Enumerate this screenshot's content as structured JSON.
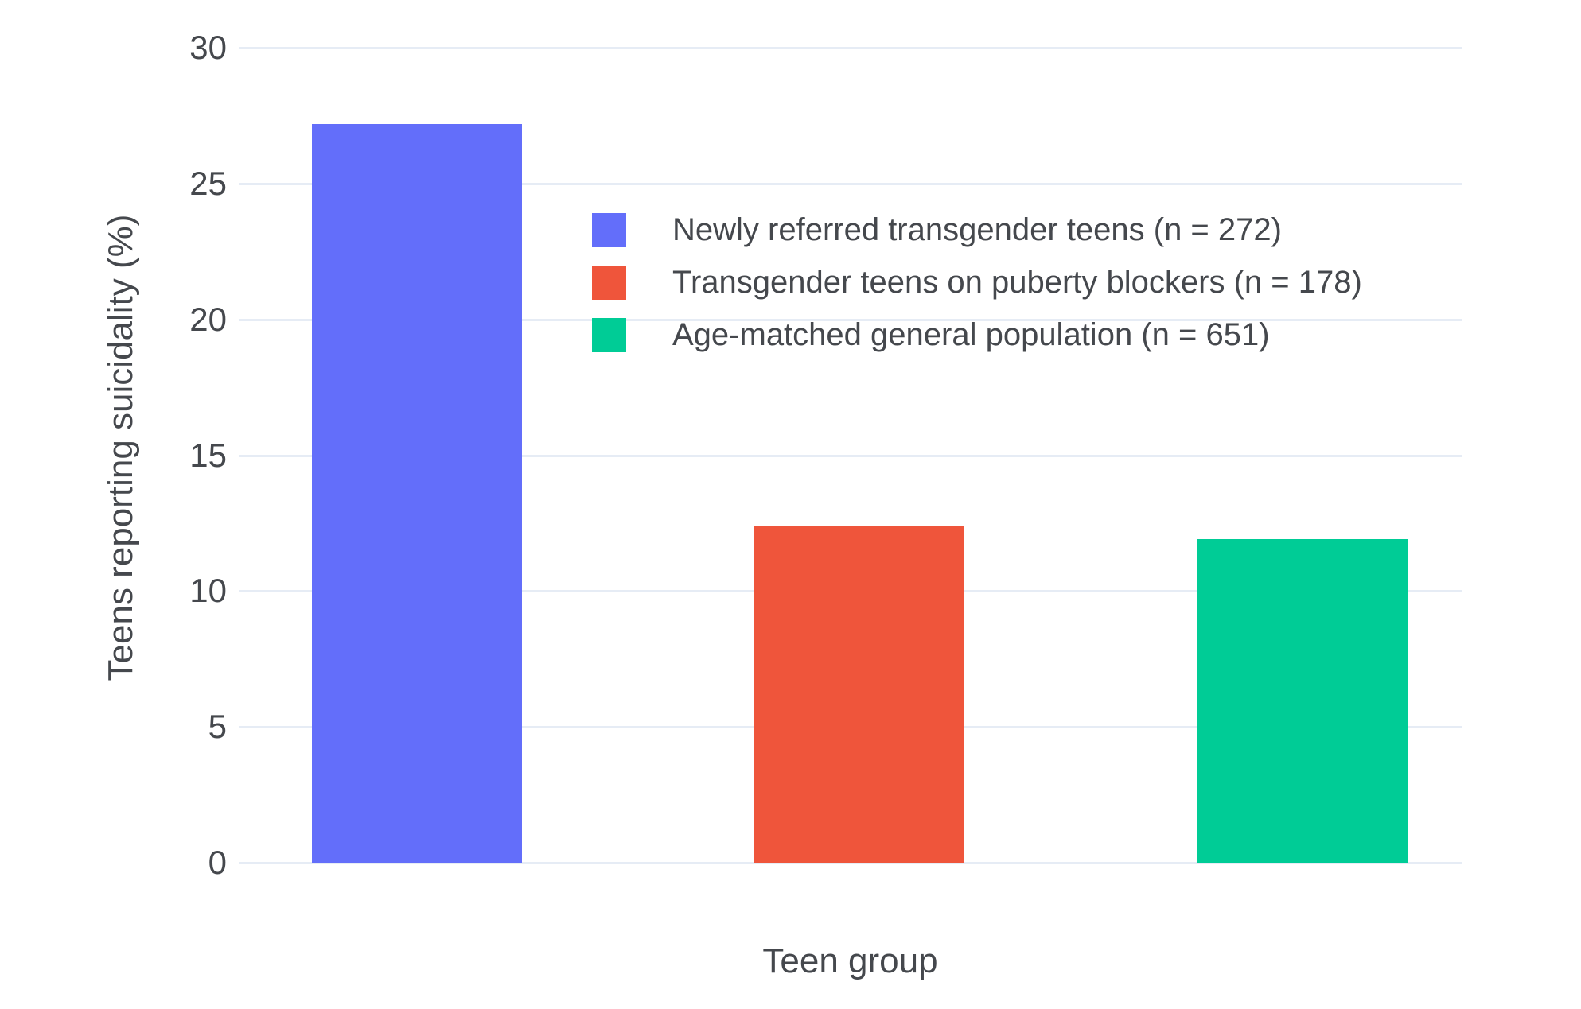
{
  "chart_data": {
    "type": "bar",
    "title": "",
    "xlabel": "Teen group",
    "ylabel": "Teens reporting suicidality (%)",
    "ylim": [
      0,
      30
    ],
    "yticks": [
      0,
      5,
      10,
      15,
      20,
      25,
      30
    ],
    "grid": true,
    "legend_position": "inside-upper-center",
    "categories": [
      "Newly referred transgender teens (n = 272)",
      "Transgender teens on puberty blockers (n = 178)",
      "Age-matched general population (n = 651)"
    ],
    "values": [
      27.2,
      12.4,
      11.9
    ],
    "colors": [
      "#636EFA",
      "#EF553B",
      "#00CC96"
    ]
  }
}
